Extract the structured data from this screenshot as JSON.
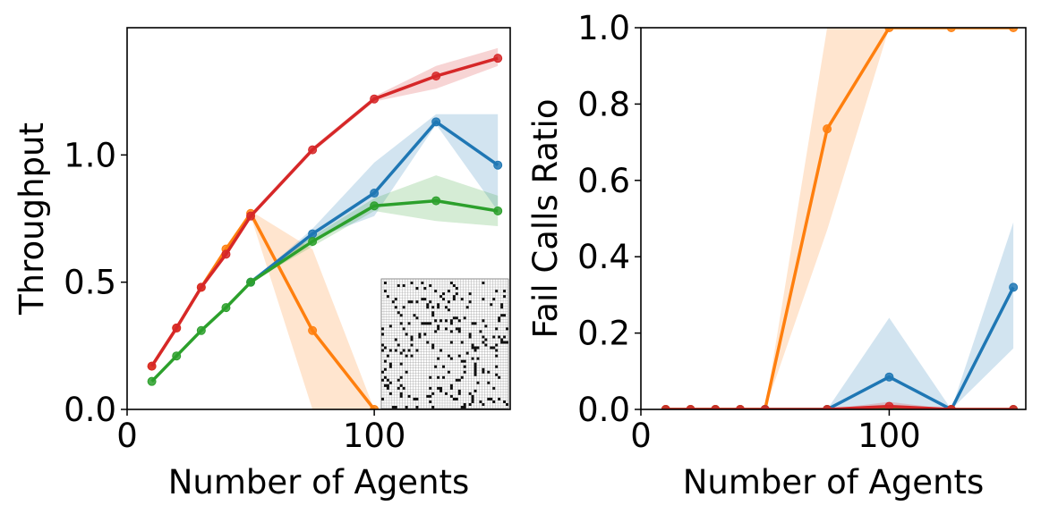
{
  "chart_data": [
    {
      "type": "line",
      "title": "",
      "xlabel": "Number of Agents",
      "ylabel": "Throughput",
      "xlim": [
        0,
        155
      ],
      "ylim": [
        0,
        1.5
      ],
      "xticks": [
        0,
        100
      ],
      "xtick_labels": [
        "0",
        "100"
      ],
      "yticks": [
        0,
        0.5,
        1.0
      ],
      "ytick_labels": [
        "0.0",
        "0.5",
        "1.0"
      ],
      "inset": "grid-map",
      "series": [
        {
          "name": "orange",
          "color": "#ff7f0e",
          "x": [
            10,
            20,
            30,
            40,
            50,
            75,
            100
          ],
          "y": [
            0.17,
            0.32,
            0.48,
            0.63,
            0.77,
            0.31,
            0.0
          ],
          "lower": [
            0.17,
            0.32,
            0.48,
            0.62,
            0.76,
            0.0,
            0.0
          ],
          "upper": [
            0.17,
            0.32,
            0.48,
            0.63,
            0.78,
            0.63,
            0.0
          ]
        },
        {
          "name": "blue",
          "color": "#1f77b4",
          "x": [
            50,
            75,
            100,
            125,
            150
          ],
          "y": [
            0.5,
            0.69,
            0.85,
            1.13,
            0.96
          ],
          "lower": [
            0.5,
            0.67,
            0.76,
            1.12,
            0.78
          ],
          "upper": [
            0.5,
            0.71,
            0.97,
            1.16,
            1.16
          ]
        },
        {
          "name": "green",
          "color": "#2ca02c",
          "x": [
            10,
            20,
            30,
            40,
            50,
            75,
            100,
            125,
            150
          ],
          "y": [
            0.11,
            0.21,
            0.31,
            0.4,
            0.5,
            0.66,
            0.8,
            0.82,
            0.78
          ],
          "lower": [
            0.11,
            0.21,
            0.31,
            0.4,
            0.5,
            0.64,
            0.78,
            0.74,
            0.72
          ],
          "upper": [
            0.11,
            0.21,
            0.31,
            0.4,
            0.51,
            0.68,
            0.83,
            0.92,
            0.84
          ]
        },
        {
          "name": "red",
          "color": "#d62728",
          "x": [
            10,
            20,
            30,
            40,
            50,
            75,
            100,
            125,
            150
          ],
          "y": [
            0.17,
            0.32,
            0.48,
            0.61,
            0.76,
            1.02,
            1.22,
            1.31,
            1.38
          ],
          "lower": [
            0.17,
            0.32,
            0.48,
            0.61,
            0.75,
            1.01,
            1.21,
            1.26,
            1.35
          ],
          "upper": [
            0.17,
            0.32,
            0.48,
            0.62,
            0.77,
            1.03,
            1.23,
            1.35,
            1.42
          ]
        }
      ]
    },
    {
      "type": "line",
      "title": "",
      "xlabel": "Number of Agents",
      "ylabel": "Fail Calls Ratio",
      "xlim": [
        0,
        155
      ],
      "ylim": [
        0,
        1.0
      ],
      "xticks": [
        0,
        100
      ],
      "xtick_labels": [
        "0",
        "100"
      ],
      "yticks": [
        0,
        0.2,
        0.4,
        0.6,
        0.8,
        1.0
      ],
      "ytick_labels": [
        "0.0",
        "0.2",
        "0.4",
        "0.6",
        "0.8",
        "1.0"
      ],
      "series": [
        {
          "name": "orange",
          "color": "#ff7f0e",
          "x": [
            10,
            20,
            30,
            40,
            50,
            75,
            100,
            125,
            150
          ],
          "y": [
            0,
            0,
            0,
            0,
            0,
            0.735,
            1.0,
            1.0,
            1.0
          ],
          "lower": [
            0,
            0,
            0,
            0,
            0,
            0.47,
            1.0,
            1.0,
            1.0
          ],
          "upper": [
            0,
            0,
            0,
            0,
            0,
            1.0,
            1.0,
            1.0,
            1.0
          ]
        },
        {
          "name": "blue",
          "color": "#1f77b4",
          "x": [
            50,
            75,
            100,
            125,
            150
          ],
          "y": [
            0,
            0,
            0.085,
            0,
            0.32
          ],
          "lower": [
            0,
            0,
            0,
            0,
            0.16
          ],
          "upper": [
            0,
            0,
            0.24,
            0,
            0.49
          ]
        },
        {
          "name": "green",
          "color": "#2ca02c",
          "x": [
            10,
            20,
            30,
            40,
            50,
            75,
            100,
            125,
            150
          ],
          "y": [
            0,
            0,
            0,
            0,
            0,
            0,
            0,
            0,
            0
          ],
          "lower": [
            0,
            0,
            0,
            0,
            0,
            0,
            0,
            0,
            0
          ],
          "upper": [
            0,
            0,
            0,
            0,
            0,
            0,
            0,
            0,
            0
          ]
        },
        {
          "name": "red",
          "color": "#d62728",
          "x": [
            10,
            20,
            30,
            40,
            50,
            75,
            100,
            125,
            150
          ],
          "y": [
            0,
            0,
            0,
            0,
            0,
            0,
            0.008,
            0,
            0
          ],
          "lower": [
            0,
            0,
            0,
            0,
            0,
            0,
            0,
            0,
            0
          ],
          "upper": [
            0,
            0,
            0,
            0,
            0,
            0,
            0.02,
            0,
            0
          ]
        }
      ]
    }
  ]
}
